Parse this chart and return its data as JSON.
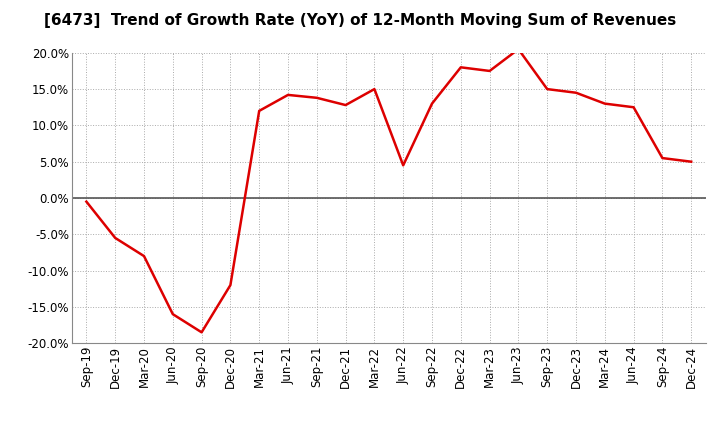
{
  "title": "[6473]  Trend of Growth Rate (YoY) of 12-Month Moving Sum of Revenues",
  "x_labels": [
    "Sep-19",
    "Dec-19",
    "Mar-20",
    "Jun-20",
    "Sep-20",
    "Dec-20",
    "Mar-21",
    "Jun-21",
    "Sep-21",
    "Dec-21",
    "Mar-22",
    "Jun-22",
    "Sep-22",
    "Dec-22",
    "Mar-23",
    "Jun-23",
    "Sep-23",
    "Dec-23",
    "Mar-24",
    "Jun-24",
    "Sep-24",
    "Dec-24"
  ],
  "y_values": [
    -0.5,
    -5.5,
    -8.0,
    -16.0,
    -18.5,
    -12.0,
    12.0,
    14.2,
    13.8,
    12.8,
    15.0,
    4.5,
    13.0,
    18.0,
    17.5,
    20.5,
    15.0,
    14.5,
    13.0,
    12.5,
    5.5,
    5.0
  ],
  "line_color": "#dd0000",
  "background_color": "#ffffff",
  "plot_bg_color": "#ffffff",
  "ylim": [
    -20.0,
    20.0
  ],
  "yticks": [
    -20.0,
    -15.0,
    -10.0,
    -5.0,
    0.0,
    5.0,
    10.0,
    15.0,
    20.0
  ],
  "grid_color": "#aaaaaa",
  "zero_line_color": "#555555",
  "title_fontsize": 11,
  "line_width": 1.8,
  "tick_fontsize": 8.5,
  "ytick_fontsize": 8.5
}
